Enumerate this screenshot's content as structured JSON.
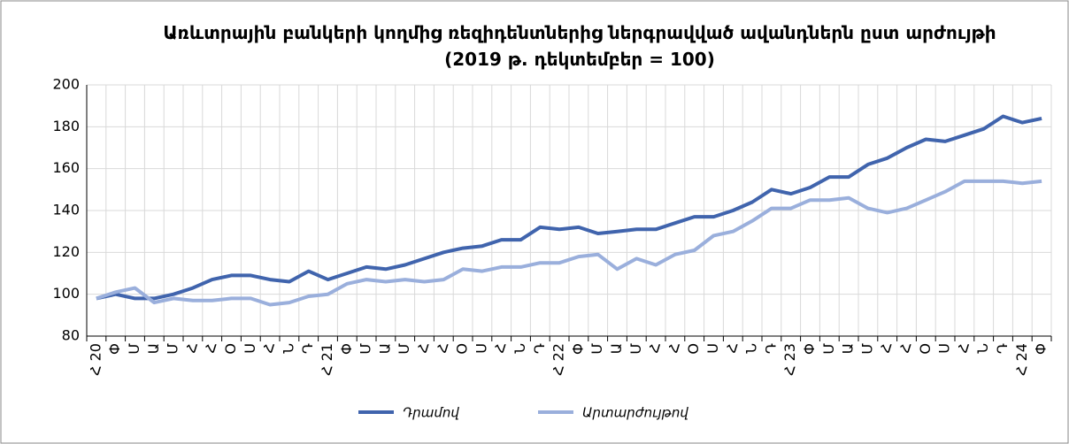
{
  "chart_data": {
    "type": "line",
    "title": "Առևտրային բանկերի կողմից ռեզիդենտներից ներգրավված ավանդներն ըստ արժույթի (2019 թ. դեկտեմբեր = 100)",
    "categories": [
      "Հ 20",
      "Փ",
      "Մ",
      "Ա",
      "Մ",
      "Հ",
      "Հ",
      "Օ",
      "Ս",
      "Հ",
      "Ն",
      "Դ",
      "Հ 21",
      "Փ",
      "Մ",
      "Ա",
      "Մ",
      "Հ",
      "Հ",
      "Օ",
      "Ս",
      "Հ",
      "Ն",
      "Դ",
      "Հ 22",
      "Փ",
      "Մ",
      "Ա",
      "Մ",
      "Հ",
      "Հ",
      "Օ",
      "Ս",
      "Հ",
      "Ն",
      "Դ",
      "Հ 23",
      "Փ",
      "Մ",
      "Ա",
      "Մ",
      "Հ",
      "Հ",
      "Օ",
      "Ս",
      "Հ",
      "Ն",
      "Դ",
      "Հ 24",
      "Փ"
    ],
    "series": [
      {
        "name": "Դրամով",
        "color": "#4064ad",
        "values": [
          98,
          100,
          98,
          98,
          100,
          103,
          107,
          109,
          109,
          107,
          106,
          111,
          107,
          110,
          113,
          112,
          114,
          117,
          120,
          122,
          123,
          126,
          126,
          132,
          131,
          132,
          129,
          130,
          131,
          131,
          134,
          137,
          137,
          140,
          144,
          150,
          148,
          151,
          156,
          156,
          162,
          165,
          170,
          174,
          173,
          176,
          179,
          185,
          182,
          184
        ]
      },
      {
        "name": "Արտարժույթով",
        "color": "#9aafdc",
        "values": [
          98,
          101,
          103,
          96,
          98,
          97,
          97,
          98,
          98,
          95,
          96,
          99,
          100,
          105,
          107,
          106,
          107,
          106,
          107,
          112,
          111,
          113,
          113,
          115,
          115,
          118,
          119,
          112,
          117,
          114,
          119,
          121,
          128,
          130,
          135,
          141,
          141,
          145,
          145,
          146,
          141,
          139,
          141,
          145,
          149,
          154,
          154,
          154,
          153,
          154
        ]
      }
    ],
    "ylim": [
      80,
      200
    ],
    "yticks": [
      80,
      100,
      120,
      140,
      160,
      180,
      200
    ],
    "grid": true
  }
}
